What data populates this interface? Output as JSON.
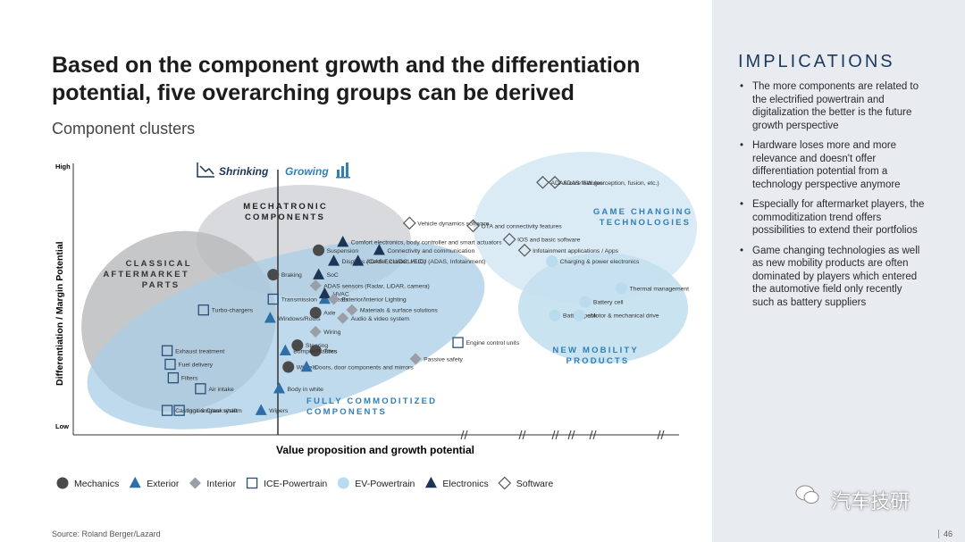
{
  "title": "Based on the component growth and the differentiation potential, five overarching groups can be derived",
  "subtitle": "Component clusters",
  "implications": {
    "heading": "IMPLICATIONS",
    "bullets": [
      "The more components are related to the electrified powertrain and digitalization the better is the future growth perspective",
      "Hardware loses more and more relevance and doesn't offer differentiation potential from a technology perspective anymore",
      "Especially for aftermarket players, the commoditization trend offers possibilities to extend their portfolios",
      "Game changing technologies as well as new mobility products are often dominated by players which entered the automotive field only recently such as battery suppliers"
    ]
  },
  "footer": {
    "source": "Source: Roland Berger/Lazard",
    "page": "46"
  },
  "watermark": "汽车技研",
  "colors": {
    "Mechanics": "#4a4a4a",
    "Exterior": "#2f6fa8",
    "Interior": "#9a9ea6",
    "ICE-Powertrain": "#2a4e78",
    "EV-Powertrain": "#b9dbee",
    "Electronics": "#1c3557",
    "Software": "#555555"
  },
  "chart_data": {
    "type": "scatter",
    "xlabel": "Value proposition and growth potential",
    "ylabel": "Differentiation / Margin Potential",
    "y_ticks": [
      "High",
      "Low"
    ],
    "phase_labels": [
      "Shrinking",
      "Growing"
    ],
    "legend": [
      "Mechanics",
      "Exterior",
      "Interior",
      "ICE-Powertrain",
      "EV-Powertrain",
      "Electronics",
      "Software"
    ],
    "clusters": [
      {
        "id": "classical",
        "lines": [
          "CLASSICAL",
          "AFTERMARKET",
          "PARTS"
        ]
      },
      {
        "id": "mechatronic",
        "lines": [
          "MECHATRONIC",
          "COMPONENTS"
        ]
      },
      {
        "id": "game",
        "lines": [
          "GAME CHANGING",
          "TECHNOLOGIES"
        ]
      },
      {
        "id": "mobility",
        "lines": [
          "NEW MOBILITY",
          "PRODUCTS"
        ]
      },
      {
        "id": "commodity",
        "lines": [
          "FULLY COMMODITIZED",
          "COMPONENTS"
        ]
      }
    ],
    "points": [
      {
        "label": "ADAS features",
        "category": "Software",
        "x": 0.795,
        "y": 0.93
      },
      {
        "label": "ADAS core SW (perception, fusion, etc.)",
        "category": "Software",
        "x": 0.775,
        "y": 0.93
      },
      {
        "label": "Vehicle dynamics software",
        "category": "Software",
        "x": 0.555,
        "y": 0.78
      },
      {
        "label": "OTA and connectivity features",
        "category": "Software",
        "x": 0.66,
        "y": 0.77
      },
      {
        "label": "IOS and basic software",
        "category": "Software",
        "x": 0.72,
        "y": 0.72
      },
      {
        "label": "Infotainment applications / Apps",
        "category": "Software",
        "x": 0.745,
        "y": 0.68
      },
      {
        "label": "Charging & power electronics",
        "category": "EV-Powertrain",
        "x": 0.79,
        "y": 0.64
      },
      {
        "label": "Thermal management",
        "category": "EV-Powertrain",
        "x": 0.905,
        "y": 0.54
      },
      {
        "label": "Battery cell",
        "category": "EV-Powertrain",
        "x": 0.845,
        "y": 0.49
      },
      {
        "label": "Battery pack",
        "category": "EV-Powertrain",
        "x": 0.795,
        "y": 0.44
      },
      {
        "label": "eMotor & mechanical drive",
        "category": "EV-Powertrain",
        "x": 0.835,
        "y": 0.44
      },
      {
        "label": "Engine control units",
        "category": "ICE-Powertrain",
        "x": 0.635,
        "y": 0.34
      },
      {
        "label": "Passive safety",
        "category": "Interior",
        "x": 0.565,
        "y": 0.28
      },
      {
        "label": "Comfort electronics, body controller and smart actuators",
        "category": "Electronics",
        "x": 0.445,
        "y": 0.71
      },
      {
        "label": "Connectivity and communication",
        "category": "Electronics",
        "x": 0.505,
        "y": 0.68
      },
      {
        "label": "Suspension",
        "category": "Mechanics",
        "x": 0.405,
        "y": 0.68
      },
      {
        "label": "Displays (Center, cluster, HUD)",
        "category": "Electronics",
        "x": 0.43,
        "y": 0.64
      },
      {
        "label": "ADAS ECU/DCU/ECU (ADAS, Infotainment)",
        "category": "Electronics",
        "x": 0.47,
        "y": 0.64
      },
      {
        "label": "Braking",
        "category": "Mechanics",
        "x": 0.33,
        "y": 0.59
      },
      {
        "label": "SoC",
        "category": "Electronics",
        "x": 0.405,
        "y": 0.59
      },
      {
        "label": "ADAS sensors (Radar, LiDAR, camera)",
        "category": "Interior",
        "x": 0.4,
        "y": 0.55
      },
      {
        "label": "Transmission",
        "category": "ICE-Powertrain",
        "x": 0.33,
        "y": 0.5
      },
      {
        "label": "Seats",
        "category": "Exterior",
        "x": 0.415,
        "y": 0.5
      },
      {
        "label": "HVAC",
        "category": "Electronics",
        "x": 0.415,
        "y": 0.52
      },
      {
        "label": "Exterior/Interior Lighting",
        "category": "Interior",
        "x": 0.43,
        "y": 0.5
      },
      {
        "label": "Materials & surface solutions",
        "category": "Interior",
        "x": 0.46,
        "y": 0.46
      },
      {
        "label": "Audio & video system",
        "category": "Interior",
        "x": 0.445,
        "y": 0.43
      },
      {
        "label": "Axle",
        "category": "Mechanics",
        "x": 0.4,
        "y": 0.45
      },
      {
        "label": "Turbo-chargers",
        "category": "ICE-Powertrain",
        "x": 0.215,
        "y": 0.46
      },
      {
        "label": "Windows/Roofs",
        "category": "Exterior",
        "x": 0.325,
        "y": 0.43
      },
      {
        "label": "Wiring",
        "category": "Interior",
        "x": 0.4,
        "y": 0.38
      },
      {
        "label": "Steering",
        "category": "Mechanics",
        "x": 0.37,
        "y": 0.33
      },
      {
        "label": "Tires",
        "category": "Mechanics",
        "x": 0.4,
        "y": 0.31
      },
      {
        "label": "Bumper/Plastics",
        "category": "Exterior",
        "x": 0.35,
        "y": 0.31
      },
      {
        "label": "Exhaust treatment",
        "category": "ICE-Powertrain",
        "x": 0.155,
        "y": 0.31
      },
      {
        "label": "Fuel delivery",
        "category": "ICE-Powertrain",
        "x": 0.16,
        "y": 0.26
      },
      {
        "label": "Wheels",
        "category": "Mechanics",
        "x": 0.355,
        "y": 0.25
      },
      {
        "label": "Doors, door components and mirrors",
        "category": "Exterior",
        "x": 0.385,
        "y": 0.25
      },
      {
        "label": "Filters",
        "category": "ICE-Powertrain",
        "x": 0.165,
        "y": 0.21
      },
      {
        "label": "Air intake",
        "category": "ICE-Powertrain",
        "x": 0.21,
        "y": 0.17
      },
      {
        "label": "Body in white",
        "category": "Exterior",
        "x": 0.34,
        "y": 0.17
      },
      {
        "label": "Castings & Crank shaft",
        "category": "ICE-Powertrain",
        "x": 0.155,
        "y": 0.09
      },
      {
        "label": "Ignition/glow system",
        "category": "ICE-Powertrain",
        "x": 0.175,
        "y": 0.09
      },
      {
        "label": "Wipers",
        "category": "Exterior",
        "x": 0.31,
        "y": 0.09
      }
    ]
  }
}
